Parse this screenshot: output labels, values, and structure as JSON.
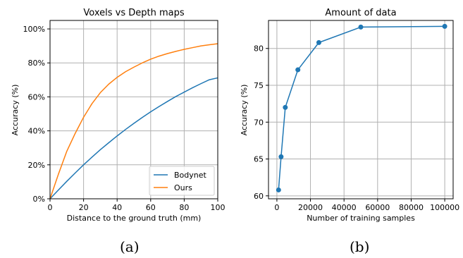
{
  "chart_data": [
    {
      "type": "line",
      "title": "Voxels vs Depth maps",
      "xlabel": "Distance to the ground truth (mm)",
      "ylabel": "Accuracy (%)",
      "xlim": [
        0,
        100
      ],
      "ylim": [
        0,
        105
      ],
      "x_ticks": [
        "0",
        "20",
        "40",
        "60",
        "80",
        "100"
      ],
      "y_ticks": [
        "0%",
        "20%",
        "40%",
        "60%",
        "80%",
        "100%"
      ],
      "x_tick_values": [
        0,
        20,
        40,
        60,
        80,
        100
      ],
      "y_tick_values": [
        0,
        20,
        40,
        60,
        80,
        100
      ],
      "grid": true,
      "legend_position": "bottom-right",
      "x": [
        0,
        5,
        10,
        15,
        20,
        25,
        30,
        35,
        40,
        45,
        50,
        55,
        60,
        65,
        70,
        75,
        80,
        85,
        90,
        95,
        100
      ],
      "series": [
        {
          "name": "Bodynet",
          "color": "#1f77b4",
          "values": [
            0,
            5.2,
            10.3,
            15.2,
            20.0,
            24.5,
            28.9,
            33.0,
            37.0,
            40.8,
            44.4,
            47.9,
            51.2,
            54.3,
            57.3,
            60.2,
            62.8,
            65.4,
            67.8,
            70.1,
            71.2
          ]
        },
        {
          "name": "Ours",
          "color": "#ff7f0e",
          "values": [
            0,
            14.5,
            28.0,
            38.5,
            48.0,
            56.0,
            62.5,
            67.5,
            71.5,
            74.8,
            77.5,
            80.0,
            82.2,
            84.0,
            85.5,
            86.8,
            88.0,
            89.0,
            90.0,
            90.7,
            91.3
          ]
        }
      ]
    },
    {
      "type": "line",
      "title": "Amount of data",
      "xlabel": "Number of training samples",
      "ylabel": "Accuracy (%)",
      "xlim": [
        -5000,
        105000
      ],
      "ylim": [
        59.6,
        83.8
      ],
      "x_ticks": [
        "0",
        "20000",
        "40000",
        "60000",
        "80000",
        "100000"
      ],
      "y_ticks": [
        "60",
        "65",
        "70",
        "75",
        "80"
      ],
      "x_tick_values": [
        0,
        20000,
        40000,
        60000,
        80000,
        100000
      ],
      "y_tick_values": [
        60,
        65,
        70,
        75,
        80
      ],
      "grid": true,
      "x": [
        1000,
        2500,
        5000,
        12500,
        25000,
        50000,
        100000
      ],
      "series": [
        {
          "color": "#1f77b4",
          "markers": true,
          "values": [
            60.8,
            65.3,
            72.0,
            77.1,
            80.8,
            82.9,
            83.0
          ]
        }
      ]
    }
  ],
  "captions": [
    "(a)",
    "(b)"
  ]
}
